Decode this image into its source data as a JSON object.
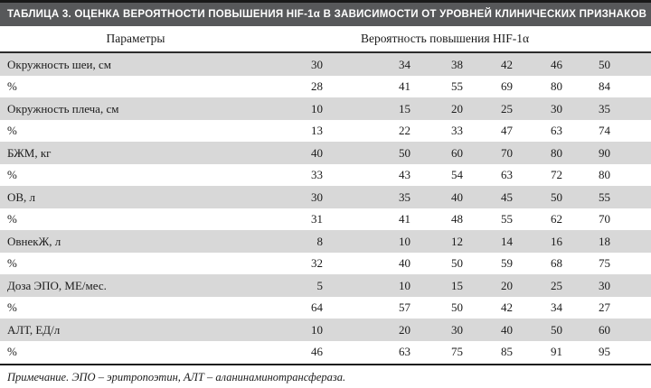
{
  "table": {
    "title": "ТАБЛИЦА 3. ОЦЕНКА ВЕРОЯТНОСТИ ПОВЫШЕНИЯ HIF-1α В ЗАВИСИМОСТИ ОТ УРОВНЕЙ КЛИНИЧЕСКИХ ПРИЗНАКОВ",
    "header": {
      "param_column": "Параметры",
      "value_column": "Вероятность повышения HIF-1α"
    },
    "rows": [
      {
        "label": "Окружность шеи, см",
        "values": [
          30,
          34,
          38,
          42,
          46,
          50
        ],
        "percent_label": "%",
        "percents": [
          28,
          41,
          55,
          69,
          80,
          84
        ]
      },
      {
        "label": "Окружность плеча, см",
        "values": [
          10,
          15,
          20,
          25,
          30,
          35
        ],
        "percent_label": "%",
        "percents": [
          13,
          22,
          33,
          47,
          63,
          74
        ]
      },
      {
        "label": "БЖМ, кг",
        "values": [
          40,
          50,
          60,
          70,
          80,
          90
        ],
        "percent_label": "%",
        "percents": [
          33,
          43,
          54,
          63,
          72,
          80
        ]
      },
      {
        "label": "ОВ, л",
        "values": [
          30,
          35,
          40,
          45,
          50,
          55
        ],
        "percent_label": "%",
        "percents": [
          31,
          41,
          48,
          55,
          62,
          70
        ]
      },
      {
        "label": "ОвнекЖ, л",
        "values": [
          8,
          10,
          12,
          14,
          16,
          18
        ],
        "percent_label": "%",
        "percents": [
          32,
          40,
          50,
          59,
          68,
          75
        ]
      },
      {
        "label": "Доза ЭПО, МЕ/мес.",
        "values": [
          5,
          10,
          15,
          20,
          25,
          30
        ],
        "percent_label": "%",
        "percents": [
          64,
          57,
          50,
          42,
          34,
          27
        ]
      },
      {
        "label": "АЛТ, ЕД/л",
        "values": [
          10,
          20,
          30,
          40,
          50,
          60
        ],
        "percent_label": "%",
        "percents": [
          46,
          63,
          75,
          85,
          91,
          95
        ]
      }
    ],
    "note": "Примечание. ЭПО – эритропоэтин, АЛТ – аланинаминотрансфераза."
  },
  "colors": {
    "title_bar_bg": "#57585a",
    "title_text": "#ffffff",
    "row_shaded_bg": "#d8d8d8",
    "rule": "#1d1d1d",
    "body_text": "#1b1b1b"
  }
}
